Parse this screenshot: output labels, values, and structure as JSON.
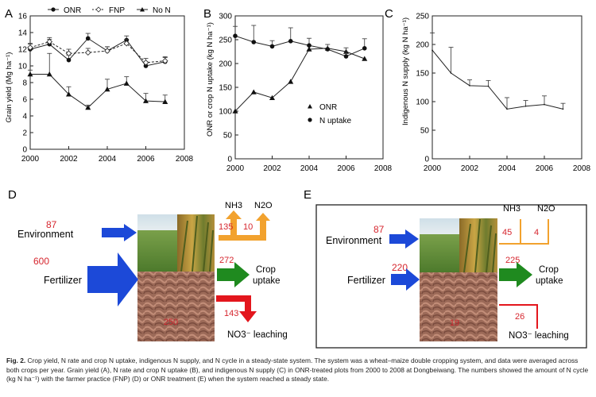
{
  "chart_data": [
    {
      "type": "line",
      "panel_label": "A",
      "ylabel": "Grain yield (Mg ha⁻¹)",
      "xlim": [
        2000,
        2008
      ],
      "ylim": [
        0,
        16
      ],
      "x_ticks": [
        "2000",
        "2002",
        "2004",
        "2006",
        "2008"
      ],
      "y_ticks": [
        "0",
        "2",
        "4",
        "6",
        "8",
        "10",
        "12",
        "14",
        "16"
      ],
      "legend": "top",
      "series": [
        {
          "name": "ONR",
          "marker": "circle",
          "x": [
            2000,
            2001,
            2002,
            2003,
            2004,
            2005,
            2006,
            2007
          ],
          "y": [
            12.0,
            12.6,
            10.7,
            13.3,
            11.8,
            13.1,
            10.0,
            10.5
          ],
          "err": [
            0.6,
            0.6,
            0.6,
            0.6,
            0.5,
            0.5,
            0.5,
            0.5
          ]
        },
        {
          "name": "FNP",
          "marker": "diamond",
          "x": [
            2000,
            2001,
            2002,
            2003,
            2004,
            2005,
            2006,
            2007
          ],
          "y": [
            12.2,
            12.9,
            11.5,
            11.6,
            11.8,
            12.7,
            10.4,
            10.6
          ],
          "err": [
            0.5,
            0.5,
            0.5,
            0.5,
            0.5,
            0.5,
            0.5,
            0.5
          ]
        },
        {
          "name": "No N",
          "marker": "triangle",
          "x": [
            2000,
            2001,
            2002,
            2003,
            2004,
            2005,
            2006,
            2007
          ],
          "y": [
            9.0,
            9.0,
            6.6,
            5.0,
            7.2,
            7.9,
            5.8,
            5.7
          ],
          "err": [
            0.5,
            2.5,
            0.9,
            0.3,
            1.2,
            0.8,
            0.9,
            0.8
          ]
        }
      ]
    },
    {
      "type": "line",
      "panel_label": "B",
      "ylabel": "ONR or crop N uptake (kg N ha⁻¹)",
      "xlim": [
        2000,
        2008
      ],
      "ylim": [
        0,
        300
      ],
      "x_ticks": [
        "2000",
        "2002",
        "2004",
        "2006",
        "2008"
      ],
      "y_ticks": [
        "0",
        "50",
        "100",
        "150",
        "200",
        "250",
        "300"
      ],
      "legend": "right",
      "series": [
        {
          "name": "ONR",
          "marker": "triangle",
          "x": [
            2000,
            2001,
            2002,
            2003,
            2004,
            2005,
            2006,
            2007
          ],
          "y": [
            100,
            140,
            128,
            162,
            230,
            232,
            225,
            210
          ],
          "err": [
            0,
            0,
            0,
            0,
            0,
            0,
            0,
            0
          ]
        },
        {
          "name": "N uptake",
          "marker": "circle",
          "x": [
            2000,
            2001,
            2002,
            2003,
            2004,
            2005,
            2006,
            2007
          ],
          "y": [
            258,
            245,
            236,
            247,
            238,
            230,
            215,
            232
          ],
          "err": [
            20,
            35,
            12,
            28,
            15,
            10,
            18,
            20
          ]
        }
      ]
    },
    {
      "type": "line",
      "panel_label": "C",
      "ylabel": "Indigenous N supply (kg N ha⁻¹)",
      "xlim": [
        2000,
        2008
      ],
      "ylim": [
        0,
        250
      ],
      "x_ticks": [
        "2000",
        "2002",
        "2004",
        "2006",
        "2008"
      ],
      "y_ticks": [
        "0",
        "50",
        "100",
        "150",
        "200",
        "250"
      ],
      "series": [
        {
          "name": "",
          "marker": "none",
          "x": [
            2000,
            2001,
            2002,
            2003,
            2004,
            2005,
            2006,
            2007
          ],
          "y": [
            190,
            150,
            128,
            127,
            87,
            92,
            95,
            87
          ],
          "err": [
            30,
            45,
            10,
            10,
            20,
            10,
            15,
            10
          ]
        }
      ]
    }
  ],
  "cycles": [
    {
      "panel_label": "D",
      "environment_label": "Environment",
      "environment_value": "87",
      "fertilizer_label": "Fertilizer",
      "fertilizer_value": "600",
      "nh3_label": "NH3",
      "n2o_label": "N2O",
      "nh3_value": "135",
      "n2o_value": "10",
      "uptake_value": "272",
      "uptake_label_1": "Crop",
      "uptake_label_2": "uptake",
      "leach_value": "143",
      "leach_label": "NO3⁻ leaching",
      "soil_value": "250"
    },
    {
      "panel_label": "E",
      "environment_label": "Environment",
      "environment_value": "87",
      "fertilizer_label": "Fertilizer",
      "fertilizer_value": "220",
      "nh3_label": "NH3",
      "n2o_label": "N2O",
      "nh3_value": "45",
      "n2o_value": "4",
      "uptake_value": "225",
      "uptake_label_1": "Crop",
      "uptake_label_2": "uptake",
      "leach_value": "26",
      "leach_label": "NO3⁻ leaching",
      "soil_value": "19"
    }
  ],
  "caption": {
    "label": "Fig. 2.",
    "text": "Crop yield, N rate and crop N uptake, indigenous N supply, and N cycle in a steady-state system. The system was a wheat–maize double cropping system, and data were averaged across both crops per year. Grain yield (A), N rate and crop N uptake (B), and indigenous N supply (C) in ONR-treated plots from 2000 to 2008 at Dongbeiwang. The numbers showed the amount of N cycle (kg N ha⁻¹) with the farmer practice (FNP) (D) or ONR treatment (E) when the system reached a steady state."
  }
}
